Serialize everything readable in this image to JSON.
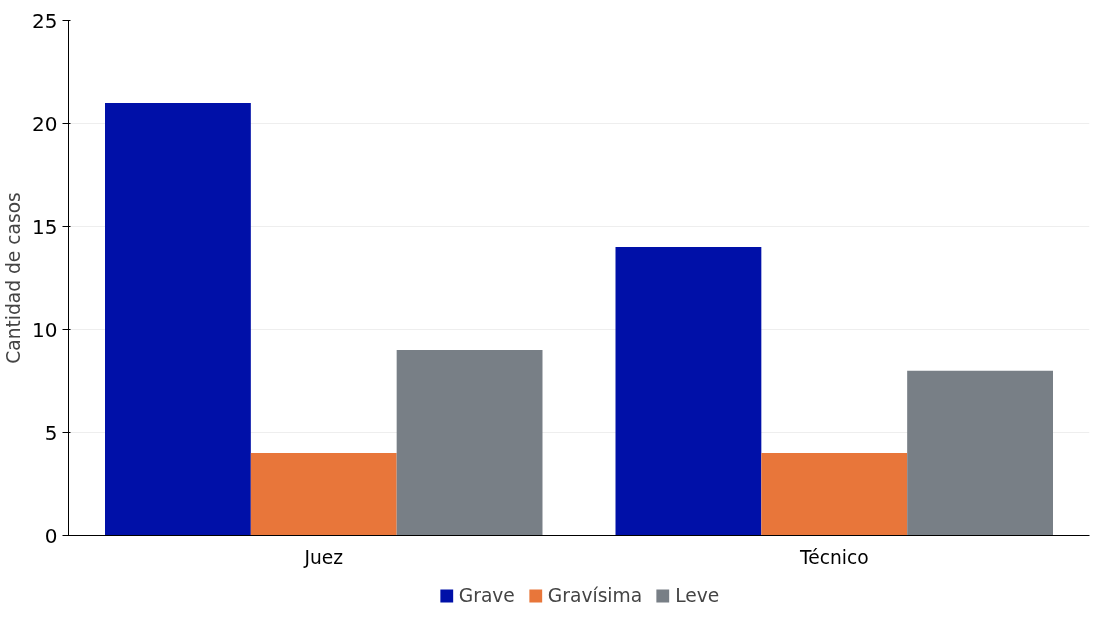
{
  "chart_data": {
    "type": "bar",
    "ylabel": "Cantidad de casos",
    "categories": [
      "Juez",
      "Técnico"
    ],
    "series": [
      {
        "name": "Grave",
        "color": "#0010a8",
        "values": [
          21,
          14
        ]
      },
      {
        "name": "Gravísima",
        "color": "#e8763a",
        "values": [
          4,
          4
        ]
      },
      {
        "name": "Leve",
        "color": "#787f86",
        "values": [
          9,
          8
        ]
      }
    ],
    "ylim": [
      0,
      25
    ],
    "yticks": [
      0,
      5,
      10,
      15,
      20,
      25
    ],
    "grid": "y",
    "legend": "bottom"
  }
}
